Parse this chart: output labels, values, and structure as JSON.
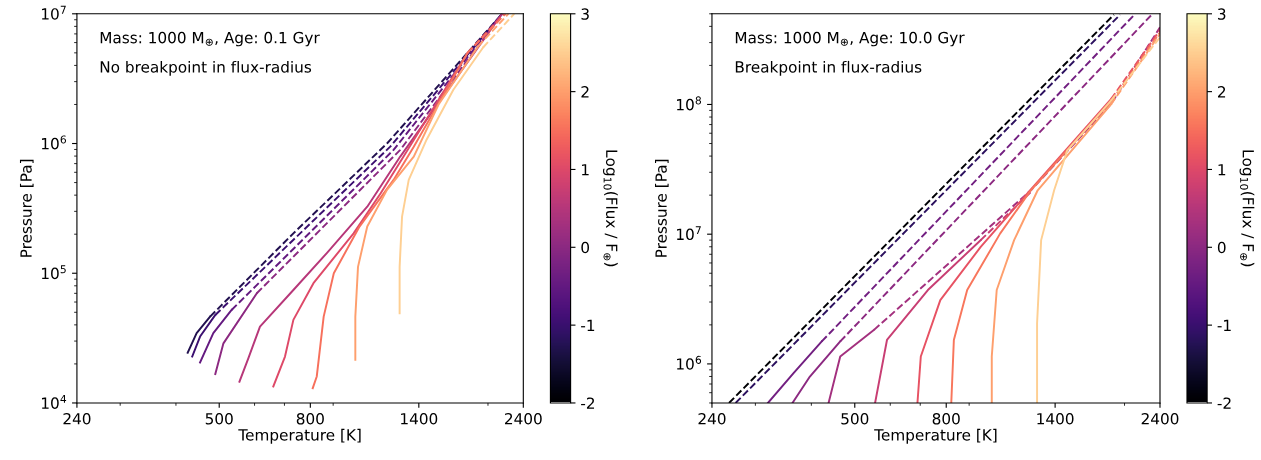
{
  "chart_data": [
    {
      "type": "line",
      "xlabel": "Temperature [K]",
      "ylabel": "Pressure [Pa]",
      "clabel": "Log$_{10}$(Flux / F$_{⊕}$)",
      "annotations": [
        "Mass: 1000 M$_{⊕}$, Age: 0.1 Gyr",
        "No breakpoint in flux-radius"
      ],
      "log": "xy",
      "xlim": [
        240,
        2400
      ],
      "ylim": [
        10000,
        10000000
      ],
      "xticks": [
        240,
        500,
        800,
        1400,
        2400
      ],
      "yticks": [
        {
          "value": 10000,
          "label": "10$^{4}$"
        },
        {
          "value": 100000,
          "label": "10$^{5}$"
        },
        {
          "value": 1000000,
          "label": "10$^{6}$"
        },
        {
          "value": 10000000,
          "label": "10$^{7}$"
        }
      ],
      "clim": [
        -2,
        3
      ],
      "cticks": [
        -2,
        -1,
        0,
        1,
        2,
        3
      ],
      "series": [
        {
          "color": "#221150",
          "line_style": "solid",
          "x": [
            425,
            445,
            477
          ],
          "values": [
            24400,
            34500,
            46300
          ]
        },
        {
          "color": "#221150",
          "line_style": "dashed",
          "x": [
            477,
            733,
            1188,
            2151
          ],
          "values": [
            46300,
            203000,
            1000000,
            10000000
          ]
        },
        {
          "color": "#3b0f70",
          "line_style": "solid",
          "x": [
            435,
            453,
            490
          ],
          "values": [
            22800,
            32500,
            47700
          ]
        },
        {
          "color": "#3b0f70",
          "line_style": "dashed",
          "x": [
            490,
            759,
            1208,
            2151
          ],
          "values": [
            47700,
            203000,
            946000,
            10000000
          ]
        },
        {
          "color": "#641a80",
          "line_style": "solid",
          "x": [
            453,
            485,
            533
          ],
          "values": [
            20500,
            34500,
            52100
          ]
        },
        {
          "color": "#641a80",
          "line_style": "dashed",
          "x": [
            533,
            1229,
            2151
          ],
          "values": [
            52100,
            893000,
            10000000
          ]
        },
        {
          "color": "#8c2981",
          "line_style": "solid",
          "x": [
            490,
            511,
            607
          ],
          "values": [
            16700,
            28800,
            70100
          ]
        },
        {
          "color": "#8c2981",
          "line_style": "dashed",
          "x": [
            607,
            1272,
            2151
          ],
          "values": [
            70100,
            893000,
            10000000
          ]
        },
        {
          "color": "#b73779",
          "line_style": "solid",
          "x": [
            555,
            581,
            617,
            733,
            871,
            1073,
            1272,
            2151
          ],
          "values": [
            14600,
            22100,
            38800,
            74300,
            143000,
            326000,
            793000,
            10000000
          ]
        },
        {
          "color": "#de4968",
          "line_style": "solid",
          "x": [
            661,
            702,
            733,
            813,
            1000,
            1150,
            1294,
            1800
          ],
          "values": [
            13400,
            22800,
            43700,
            83800,
            203000,
            414000,
            793000,
            5000000
          ]
        },
        {
          "color": "#de4968",
          "line_style": "dashed",
          "x": [
            1800,
            2170
          ],
          "values": [
            5000000,
            10000000
          ]
        },
        {
          "color": "#f7705c",
          "line_style": "solid",
          "x": [
            810,
            827,
            857,
            903,
            1031,
            1229,
            1364,
            1800
          ],
          "values": [
            13000,
            16000,
            46300,
            100000,
            229000,
            524000,
            946000,
            5000000
          ]
        },
        {
          "color": "#f7705c",
          "line_style": "dashed",
          "x": [
            1800,
            2190
          ],
          "values": [
            5000000,
            10000000
          ]
        },
        {
          "color": "#fe9f6d",
          "line_style": "solid",
          "x": [
            1009,
            1009,
            1023,
            1073,
            1188,
            1364,
            1550,
            1900
          ],
          "values": [
            21500,
            46300,
            112000,
            229000,
            439000,
            793000,
            2000000,
            5600000
          ]
        },
        {
          "color": "#fe9f6d",
          "line_style": "dashed",
          "x": [
            1900,
            2222
          ],
          "values": [
            5600000,
            10000000
          ]
        },
        {
          "color": "#fecf92",
          "line_style": "solid",
          "x": [
            1268,
            1268,
            1284,
            1329,
            1457,
            1673,
            1950
          ],
          "values": [
            49200,
            112000,
            273000,
            524000,
            1070000,
            2600000,
            5500000
          ]
        },
        {
          "color": "#fecf92",
          "line_style": "dashed",
          "x": [
            1950,
            2290
          ],
          "values": [
            5500000,
            10000000
          ]
        }
      ]
    },
    {
      "type": "line",
      "xlabel": "Temperature [K]",
      "ylabel": "Pressure [Pa]",
      "clabel": "Log$_{10}$(Flux / F$_{⊕}$)",
      "annotations": [
        "Mass: 1000 M$_{⊕}$, Age: 10.0 Gyr",
        "Breakpoint in flux-radius"
      ],
      "log": "xy",
      "xlim": [
        240,
        2400
      ],
      "ylim": [
        500000,
        500000000
      ],
      "xticks": [
        240,
        500,
        800,
        1400,
        2400
      ],
      "yticks": [
        {
          "value": 1000000,
          "label": "10$^{6}$"
        },
        {
          "value": 10000000,
          "label": "10$^{7}$"
        },
        {
          "value": 100000000,
          "label": "10$^{8}$"
        }
      ],
      "clim": [
        -2,
        3
      ],
      "cticks": [
        -2,
        -1,
        0,
        1,
        2,
        3
      ],
      "series": [
        {
          "color": "#000004",
          "line_style": "dashed",
          "x": [
            262,
            1894
          ],
          "values": [
            500000,
            492000000
          ]
        },
        {
          "color": "#2c115f",
          "line_style": "dashed",
          "x": [
            271,
            1955
          ],
          "values": [
            500000,
            492000000
          ]
        },
        {
          "color": "#721f81",
          "line_style": "solid",
          "x": [
            320,
            365,
            422
          ],
          "values": [
            500000,
            848000,
            1490000
          ]
        },
        {
          "color": "#721f81",
          "line_style": "dashed",
          "x": [
            422,
            2104
          ],
          "values": [
            1490000,
            492000000
          ]
        },
        {
          "color": "#8c2981",
          "line_style": "solid",
          "x": [
            363,
            397,
            464
          ],
          "values": [
            500000,
            799000,
            1490000
          ]
        },
        {
          "color": "#8c2981",
          "line_style": "dashed",
          "x": [
            464,
            2300
          ],
          "values": [
            1490000,
            492000000
          ]
        },
        {
          "color": "#a3307e",
          "line_style": "solid",
          "x": [
            437,
            464,
            552
          ],
          "values": [
            500000,
            1140000,
            1830000
          ]
        },
        {
          "color": "#a3307e",
          "line_style": "dashed",
          "x": [
            552,
            1236,
            1866,
            2400
          ],
          "values": [
            1830000,
            21800000,
            101000000,
            393000000
          ]
        },
        {
          "color": "#c83e73",
          "line_style": "solid",
          "x": [
            555,
            590,
            728,
            955
          ],
          "values": [
            500000,
            1530000,
            3710000,
            9000000
          ]
        },
        {
          "color": "#c83e73",
          "line_style": "dashed",
          "x": [
            955,
            1236
          ],
          "values": [
            9000000,
            21100000
          ]
        },
        {
          "color": "#e75263",
          "line_style": "solid",
          "x": [
            690,
            702,
            776,
            955,
            1214,
            1866
          ],
          "values": [
            500000,
            1140000,
            3100000,
            7980000,
            20600000,
            110000000
          ]
        },
        {
          "color": "#e75263",
          "line_style": "dashed",
          "x": [
            1866,
            2400
          ],
          "values": [
            110000000,
            375000000
          ]
        },
        {
          "color": "#f8765c",
          "line_style": "solid",
          "x": [
            821,
            832,
            891,
            1055,
            1236,
            1866
          ],
          "values": [
            500000,
            1530000,
            3710000,
            10100000,
            21800000,
            105000000
          ]
        },
        {
          "color": "#f8765c",
          "line_style": "dashed",
          "x": [
            1866,
            2400
          ],
          "values": [
            105000000,
            360000000
          ]
        },
        {
          "color": "#fe9f6d",
          "line_style": "solid",
          "x": [
            1011,
            1011,
            1037,
            1134,
            1280,
            1866
          ],
          "values": [
            500000,
            1140000,
            3710000,
            9000000,
            21800000,
            100000000
          ]
        },
        {
          "color": "#fe9f6d",
          "line_style": "dashed",
          "x": [
            1866,
            2400
          ],
          "values": [
            100000000,
            350000000
          ]
        },
        {
          "color": "#fecf92",
          "line_style": "solid",
          "x": [
            1276,
            1276,
            1303,
            1393,
            1490,
            1866
          ],
          "values": [
            500000,
            2050000,
            9000000,
            21800000,
            44300000,
            107000000
          ]
        },
        {
          "color": "#fecf92",
          "line_style": "dashed",
          "x": [
            1866,
            2400
          ],
          "values": [
            107000000,
            330000000
          ]
        }
      ]
    }
  ]
}
